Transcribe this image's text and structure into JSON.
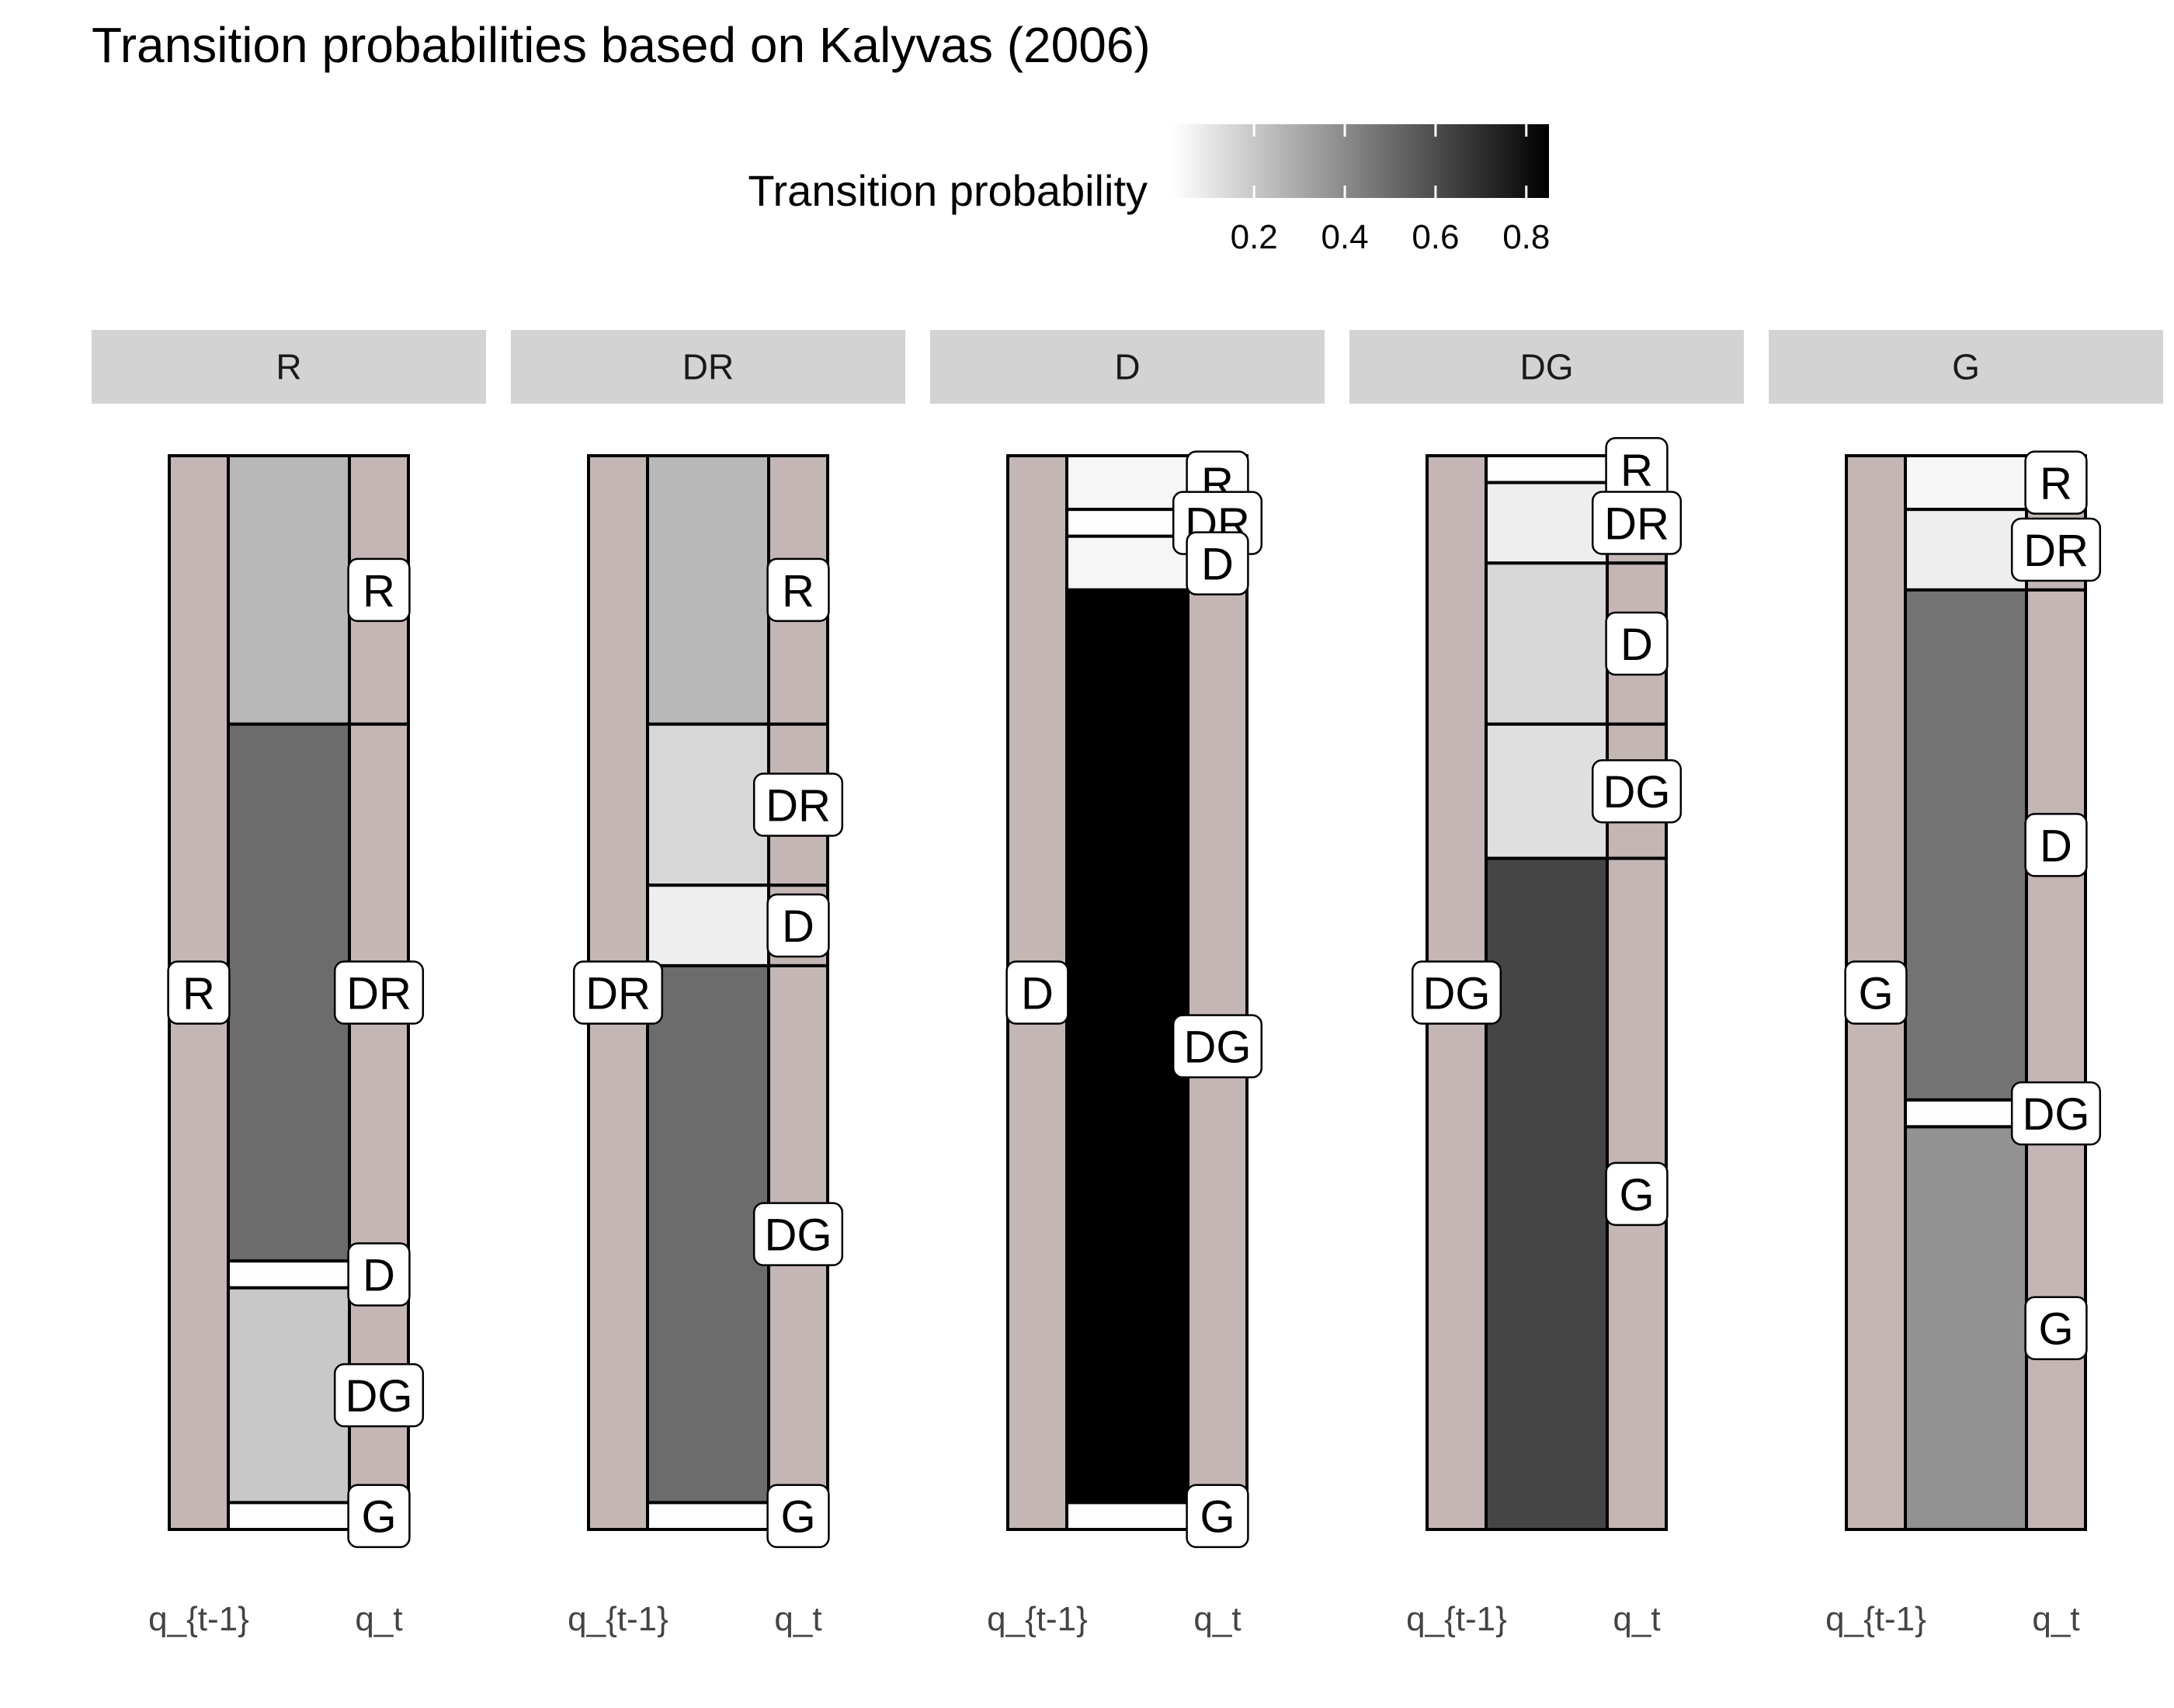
{
  "chart_data": {
    "type": "alluvial",
    "title": "Transition probabilities based on Kalyvas (2006)",
    "legend": {
      "title": "Transition probability",
      "ticks": [
        "0.2",
        "0.4",
        "0.6",
        "0.8"
      ],
      "tick_values": [
        0.2,
        0.4,
        0.6,
        0.8
      ],
      "range": [
        0.02,
        0.85
      ],
      "placement": "top"
    },
    "states": [
      "R",
      "DR",
      "D",
      "DG",
      "G"
    ],
    "x_labels": [
      "q_{t-1}",
      "q_t"
    ],
    "colors": {
      "stratum": "#c4b6b4",
      "strip": "#d3d3d3",
      "border": "#000000"
    },
    "panels": [
      {
        "facet": "R",
        "from": "R",
        "transitions": [
          {
            "to": "R",
            "prob": 0.25
          },
          {
            "to": "DR",
            "prob": 0.5
          },
          {
            "to": "D",
            "prob": 0.025
          },
          {
            "to": "DG",
            "prob": 0.2
          },
          {
            "to": "G",
            "prob": 0.025
          }
        ]
      },
      {
        "facet": "DR",
        "from": "DR",
        "transitions": [
          {
            "to": "R",
            "prob": 0.25
          },
          {
            "to": "DR",
            "prob": 0.15
          },
          {
            "to": "D",
            "prob": 0.075
          },
          {
            "to": "DG",
            "prob": 0.5
          },
          {
            "to": "G",
            "prob": 0.025
          }
        ]
      },
      {
        "facet": "D",
        "from": "D",
        "transitions": [
          {
            "to": "R",
            "prob": 0.05
          },
          {
            "to": "DR",
            "prob": 0.025
          },
          {
            "to": "D",
            "prob": 0.05
          },
          {
            "to": "DG",
            "prob": 0.85
          },
          {
            "to": "G",
            "prob": 0.025
          }
        ]
      },
      {
        "facet": "DG",
        "from": "DG",
        "transitions": [
          {
            "to": "R",
            "prob": 0.025
          },
          {
            "to": "DR",
            "prob": 0.075
          },
          {
            "to": "D",
            "prob": 0.15
          },
          {
            "to": "DG",
            "prob": 0.125
          },
          {
            "to": "G",
            "prob": 0.625
          }
        ]
      },
      {
        "facet": "G",
        "from": "G",
        "transitions": [
          {
            "to": "R",
            "prob": 0.05
          },
          {
            "to": "DR",
            "prob": 0.075
          },
          {
            "to": "D",
            "prob": 0.475
          },
          {
            "to": "DG",
            "prob": 0.025
          },
          {
            "to": "G",
            "prob": 0.375
          }
        ]
      }
    ]
  }
}
